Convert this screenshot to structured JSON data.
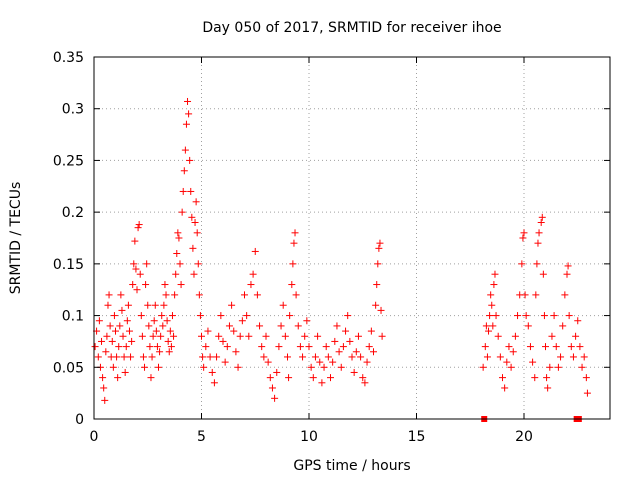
{
  "chart_data": {
    "type": "scatter",
    "title": "Day 050 of 2017, SRMTID for receiver ihoe",
    "xlabel": "GPS time / hours",
    "ylabel": "SRMTID / TECUs",
    "xlim": [
      0,
      24
    ],
    "ylim": [
      0,
      0.35
    ],
    "xticks": [
      "0",
      "5",
      "10",
      "15",
      "20"
    ],
    "yticks": [
      "0",
      "0.05",
      "0.1",
      "0.15",
      "0.2",
      "0.25",
      "0.3",
      "0.35"
    ],
    "grid": true,
    "marker": "plus",
    "color": "#ff0000",
    "series": [
      {
        "name": "SRMTID",
        "points": [
          [
            0.05,
            0.07
          ],
          [
            0.12,
            0.085
          ],
          [
            0.2,
            0.06
          ],
          [
            0.25,
            0.095
          ],
          [
            0.3,
            0.05
          ],
          [
            0.35,
            0.075
          ],
          [
            0.4,
            0.04
          ],
          [
            0.45,
            0.03
          ],
          [
            0.5,
            0.018
          ],
          [
            0.55,
            0.065
          ],
          [
            0.6,
            0.08
          ],
          [
            0.65,
            0.11
          ],
          [
            0.7,
            0.12
          ],
          [
            0.75,
            0.09
          ],
          [
            0.8,
            0.06
          ],
          [
            0.85,
            0.075
          ],
          [
            0.9,
            0.05
          ],
          [
            0.95,
            0.1
          ],
          [
            1.0,
            0.085
          ],
          [
            1.05,
            0.06
          ],
          [
            1.1,
            0.04
          ],
          [
            1.15,
            0.07
          ],
          [
            1.2,
            0.09
          ],
          [
            1.25,
            0.12
          ],
          [
            1.3,
            0.105
          ],
          [
            1.35,
            0.08
          ],
          [
            1.4,
            0.06
          ],
          [
            1.45,
            0.045
          ],
          [
            1.5,
            0.07
          ],
          [
            1.55,
            0.095
          ],
          [
            1.6,
            0.11
          ],
          [
            1.65,
            0.085
          ],
          [
            1.7,
            0.06
          ],
          [
            1.75,
            0.075
          ],
          [
            1.8,
            0.13
          ],
          [
            1.85,
            0.15
          ],
          [
            1.9,
            0.172
          ],
          [
            1.95,
            0.145
          ],
          [
            2.0,
            0.125
          ],
          [
            2.05,
            0.185
          ],
          [
            2.1,
            0.188
          ],
          [
            2.15,
            0.14
          ],
          [
            2.2,
            0.1
          ],
          [
            2.25,
            0.08
          ],
          [
            2.3,
            0.06
          ],
          [
            2.35,
            0.05
          ],
          [
            2.4,
            0.13
          ],
          [
            2.45,
            0.15
          ],
          [
            2.5,
            0.11
          ],
          [
            2.55,
            0.09
          ],
          [
            2.6,
            0.07
          ],
          [
            2.65,
            0.04
          ],
          [
            2.7,
            0.06
          ],
          [
            2.75,
            0.08
          ],
          [
            2.8,
            0.095
          ],
          [
            2.85,
            0.11
          ],
          [
            2.9,
            0.085
          ],
          [
            2.95,
            0.07
          ],
          [
            3.0,
            0.05
          ],
          [
            3.05,
            0.065
          ],
          [
            3.1,
            0.08
          ],
          [
            3.15,
            0.1
          ],
          [
            3.2,
            0.09
          ],
          [
            3.25,
            0.11
          ],
          [
            3.3,
            0.13
          ],
          [
            3.35,
            0.12
          ],
          [
            3.4,
            0.095
          ],
          [
            3.45,
            0.075
          ],
          [
            3.5,
            0.065
          ],
          [
            3.55,
            0.085
          ],
          [
            3.6,
            0.07
          ],
          [
            3.65,
            0.1
          ],
          [
            3.7,
            0.08
          ],
          [
            3.75,
            0.12
          ],
          [
            3.8,
            0.14
          ],
          [
            3.85,
            0.16
          ],
          [
            3.9,
            0.18
          ],
          [
            3.95,
            0.175
          ],
          [
            4.0,
            0.15
          ],
          [
            4.05,
            0.13
          ],
          [
            4.1,
            0.2
          ],
          [
            4.15,
            0.22
          ],
          [
            4.2,
            0.24
          ],
          [
            4.25,
            0.26
          ],
          [
            4.3,
            0.285
          ],
          [
            4.35,
            0.307
          ],
          [
            4.4,
            0.295
          ],
          [
            4.45,
            0.25
          ],
          [
            4.5,
            0.22
          ],
          [
            4.55,
            0.195
          ],
          [
            4.6,
            0.165
          ],
          [
            4.65,
            0.14
          ],
          [
            4.7,
            0.19
          ],
          [
            4.75,
            0.21
          ],
          [
            4.8,
            0.18
          ],
          [
            4.85,
            0.15
          ],
          [
            4.9,
            0.12
          ],
          [
            4.95,
            0.1
          ],
          [
            5.0,
            0.08
          ],
          [
            5.05,
            0.06
          ],
          [
            5.1,
            0.05
          ],
          [
            5.2,
            0.07
          ],
          [
            5.3,
            0.085
          ],
          [
            5.4,
            0.06
          ],
          [
            5.5,
            0.045
          ],
          [
            5.6,
            0.035
          ],
          [
            5.7,
            0.06
          ],
          [
            5.8,
            0.08
          ],
          [
            5.9,
            0.1
          ],
          [
            6.0,
            0.075
          ],
          [
            6.1,
            0.055
          ],
          [
            6.2,
            0.07
          ],
          [
            6.3,
            0.09
          ],
          [
            6.4,
            0.11
          ],
          [
            6.5,
            0.085
          ],
          [
            6.6,
            0.065
          ],
          [
            6.7,
            0.05
          ],
          [
            6.8,
            0.08
          ],
          [
            6.9,
            0.095
          ],
          [
            7.0,
            0.12
          ],
          [
            7.1,
            0.1
          ],
          [
            7.2,
            0.08
          ],
          [
            7.3,
            0.13
          ],
          [
            7.4,
            0.14
          ],
          [
            7.5,
            0.162
          ],
          [
            7.6,
            0.12
          ],
          [
            7.7,
            0.09
          ],
          [
            7.8,
            0.07
          ],
          [
            7.9,
            0.06
          ],
          [
            8.0,
            0.08
          ],
          [
            8.1,
            0.055
          ],
          [
            8.2,
            0.04
          ],
          [
            8.3,
            0.03
          ],
          [
            8.4,
            0.02
          ],
          [
            8.5,
            0.045
          ],
          [
            8.6,
            0.07
          ],
          [
            8.7,
            0.09
          ],
          [
            8.8,
            0.11
          ],
          [
            8.9,
            0.08
          ],
          [
            9.0,
            0.06
          ],
          [
            9.05,
            0.04
          ],
          [
            9.1,
            0.1
          ],
          [
            9.2,
            0.13
          ],
          [
            9.25,
            0.15
          ],
          [
            9.3,
            0.17
          ],
          [
            9.35,
            0.18
          ],
          [
            9.4,
            0.12
          ],
          [
            9.5,
            0.09
          ],
          [
            9.6,
            0.07
          ],
          [
            9.7,
            0.06
          ],
          [
            9.8,
            0.08
          ],
          [
            9.9,
            0.095
          ],
          [
            10.0,
            0.07
          ],
          [
            10.1,
            0.05
          ],
          [
            10.2,
            0.04
          ],
          [
            10.3,
            0.06
          ],
          [
            10.4,
            0.08
          ],
          [
            10.5,
            0.055
          ],
          [
            10.6,
            0.035
          ],
          [
            10.7,
            0.05
          ],
          [
            10.8,
            0.07
          ],
          [
            10.9,
            0.06
          ],
          [
            11.0,
            0.04
          ],
          [
            11.1,
            0.055
          ],
          [
            11.2,
            0.075
          ],
          [
            11.3,
            0.09
          ],
          [
            11.4,
            0.065
          ],
          [
            11.5,
            0.05
          ],
          [
            11.6,
            0.07
          ],
          [
            11.7,
            0.085
          ],
          [
            11.8,
            0.1
          ],
          [
            11.9,
            0.075
          ],
          [
            12.0,
            0.06
          ],
          [
            12.1,
            0.045
          ],
          [
            12.2,
            0.065
          ],
          [
            12.3,
            0.08
          ],
          [
            12.4,
            0.06
          ],
          [
            12.5,
            0.04
          ],
          [
            12.6,
            0.035
          ],
          [
            12.7,
            0.055
          ],
          [
            12.8,
            0.07
          ],
          [
            12.9,
            0.085
          ],
          [
            13.0,
            0.065
          ],
          [
            13.1,
            0.11
          ],
          [
            13.15,
            0.13
          ],
          [
            13.2,
            0.15
          ],
          [
            13.25,
            0.165
          ],
          [
            13.3,
            0.17
          ],
          [
            13.35,
            0.105
          ],
          [
            13.4,
            0.08
          ],
          [
            18.1,
            0.05
          ],
          [
            18.2,
            0.07
          ],
          [
            18.25,
            0.09
          ],
          [
            18.3,
            0.06
          ],
          [
            18.35,
            0.085
          ],
          [
            18.4,
            0.1
          ],
          [
            18.45,
            0.12
          ],
          [
            18.5,
            0.11
          ],
          [
            18.55,
            0.09
          ],
          [
            18.6,
            0.13
          ],
          [
            18.65,
            0.14
          ],
          [
            18.7,
            0.1
          ],
          [
            18.8,
            0.08
          ],
          [
            18.9,
            0.06
          ],
          [
            19.0,
            0.04
          ],
          [
            19.1,
            0.03
          ],
          [
            19.2,
            0.055
          ],
          [
            19.3,
            0.07
          ],
          [
            19.4,
            0.05
          ],
          [
            19.5,
            0.065
          ],
          [
            19.6,
            0.08
          ],
          [
            19.7,
            0.1
          ],
          [
            19.8,
            0.12
          ],
          [
            19.9,
            0.15
          ],
          [
            19.95,
            0.175
          ],
          [
            20.0,
            0.18
          ],
          [
            20.05,
            0.12
          ],
          [
            20.1,
            0.1
          ],
          [
            20.2,
            0.09
          ],
          [
            20.3,
            0.07
          ],
          [
            20.4,
            0.055
          ],
          [
            20.5,
            0.04
          ],
          [
            20.55,
            0.12
          ],
          [
            20.6,
            0.15
          ],
          [
            20.65,
            0.17
          ],
          [
            20.7,
            0.18
          ],
          [
            20.8,
            0.19
          ],
          [
            20.85,
            0.195
          ],
          [
            20.9,
            0.14
          ],
          [
            20.95,
            0.1
          ],
          [
            21.0,
            0.07
          ],
          [
            21.05,
            0.04
          ],
          [
            21.1,
            0.03
          ],
          [
            21.2,
            0.05
          ],
          [
            21.3,
            0.08
          ],
          [
            21.4,
            0.1
          ],
          [
            21.5,
            0.07
          ],
          [
            21.6,
            0.05
          ],
          [
            21.7,
            0.06
          ],
          [
            21.8,
            0.09
          ],
          [
            21.9,
            0.12
          ],
          [
            22.0,
            0.14
          ],
          [
            22.05,
            0.148
          ],
          [
            22.1,
            0.1
          ],
          [
            22.2,
            0.07
          ],
          [
            22.3,
            0.06
          ],
          [
            22.4,
            0.08
          ],
          [
            22.5,
            0.095
          ],
          [
            22.6,
            0.07
          ],
          [
            22.7,
            0.05
          ],
          [
            22.8,
            0.06
          ],
          [
            22.9,
            0.04
          ],
          [
            22.95,
            0.025
          ]
        ]
      }
    ],
    "zero_markers": [
      [
        18.15,
        0.0
      ],
      [
        22.45,
        0.0
      ],
      [
        22.55,
        0.0
      ]
    ]
  }
}
